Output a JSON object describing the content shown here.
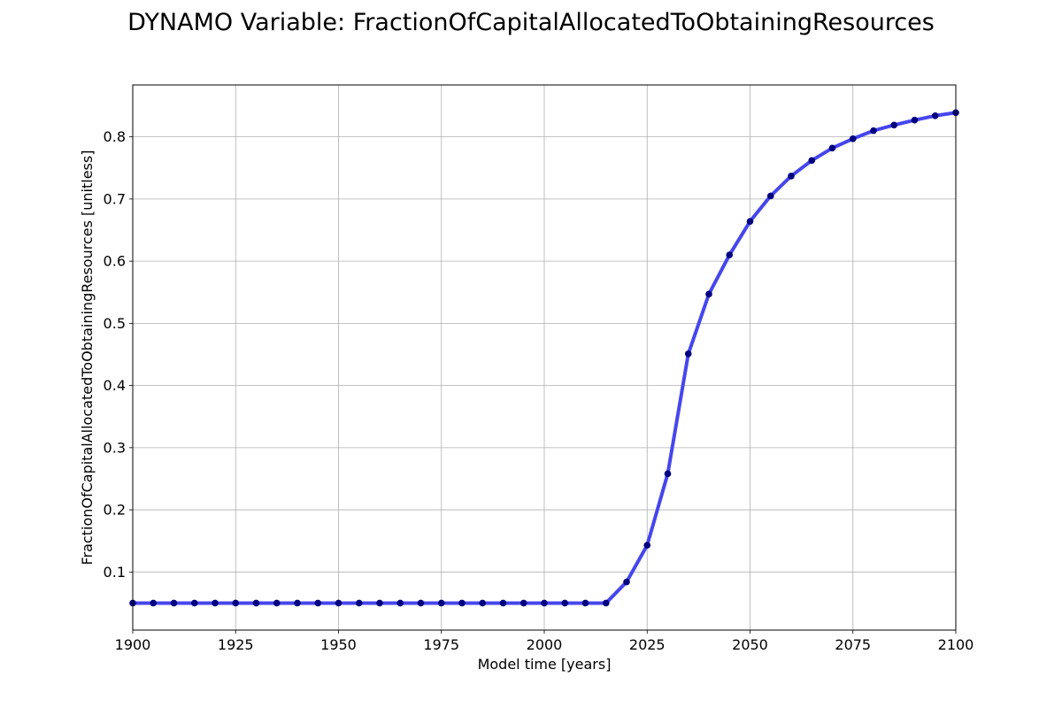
{
  "chart_data": {
    "type": "line",
    "title": "DYNAMO Variable: FractionOfCapitalAllocatedToObtainingResources",
    "xlabel": "Model time [years]",
    "ylabel": "FractionOfCapitalAllocatedToObtainingResources [unitless]",
    "xlim": [
      1900,
      2100
    ],
    "ylim": [
      0.0065,
      0.8835
    ],
    "x_ticks": [
      1900,
      1925,
      1950,
      1975,
      2000,
      2025,
      2050,
      2075,
      2100
    ],
    "y_ticks": [
      0.1,
      0.2,
      0.3,
      0.4,
      0.5,
      0.6,
      0.7,
      0.8
    ],
    "x_tick_labels": [
      "1900",
      "1925",
      "1950",
      "1975",
      "2000",
      "2025",
      "2050",
      "2075",
      "2100"
    ],
    "y_tick_labels": [
      "0.1",
      "0.2",
      "0.3",
      "0.4",
      "0.5",
      "0.6",
      "0.7",
      "0.8"
    ],
    "grid": true,
    "line_color": "#4646ee",
    "marker_color": "#000080",
    "series": [
      {
        "x": [
          1900,
          1905,
          1910,
          1915,
          1920,
          1925,
          1930,
          1935,
          1940,
          1945,
          1950,
          1955,
          1960,
          1965,
          1970,
          1975,
          1980,
          1985,
          1990,
          1995,
          2000,
          2005,
          2010,
          2015,
          2020,
          2025,
          2030,
          2035,
          2040,
          2045,
          2050,
          2055,
          2060,
          2065,
          2070,
          2075,
          2080,
          2085,
          2090,
          2095,
          2100
        ],
        "y": [
          0.05,
          0.05,
          0.05,
          0.05,
          0.05,
          0.05,
          0.05,
          0.05,
          0.05,
          0.05,
          0.05,
          0.05,
          0.05,
          0.05,
          0.05,
          0.05,
          0.05,
          0.05,
          0.05,
          0.05,
          0.05,
          0.05,
          0.05,
          0.05,
          0.084,
          0.143,
          0.258,
          0.451,
          0.547,
          0.61,
          0.664,
          0.705,
          0.737,
          0.762,
          0.782,
          0.797,
          0.81,
          0.819,
          0.827,
          0.834,
          0.839
        ]
      }
    ]
  }
}
